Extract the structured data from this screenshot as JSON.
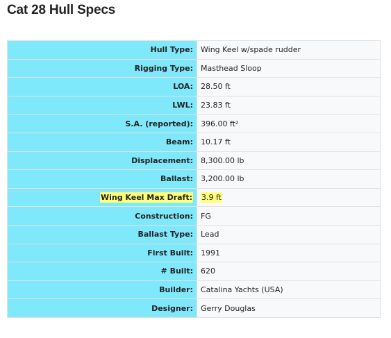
{
  "title": "Cat 28 Hull Specs",
  "colors": {
    "label_bg": "#80e8fb",
    "value_bg": "#f8f9fa",
    "highlight": "#ffff7a"
  },
  "specs": [
    {
      "label": "Hull Type:",
      "value": "Wing Keel w/spade rudder"
    },
    {
      "label": "Rigging Type:",
      "value": "Masthead Sloop"
    },
    {
      "label": "LOA:",
      "value": "28.50 ft"
    },
    {
      "label": "LWL:",
      "value": "23.83 ft"
    },
    {
      "label": "S.A. (reported):",
      "value": "396.00 ft²"
    },
    {
      "label": "Beam:",
      "value": "10.17 ft"
    },
    {
      "label": "Displacement:",
      "value": "8,300.00 lb"
    },
    {
      "label": "Ballast:",
      "value": "3,200.00 lb"
    },
    {
      "label": "Wing Keel Max Draft:",
      "value": "3.9 ft",
      "highlighted": true
    },
    {
      "label": "Construction:",
      "value": "FG"
    },
    {
      "label": "Ballast Type:",
      "value": "Lead"
    },
    {
      "label": "First Built:",
      "value": "1991"
    },
    {
      "label": "# Built:",
      "value": "620"
    },
    {
      "label": "Builder:",
      "value": "Catalina Yachts (USA)"
    },
    {
      "label": "Designer:",
      "value": "Gerry Douglas"
    }
  ]
}
